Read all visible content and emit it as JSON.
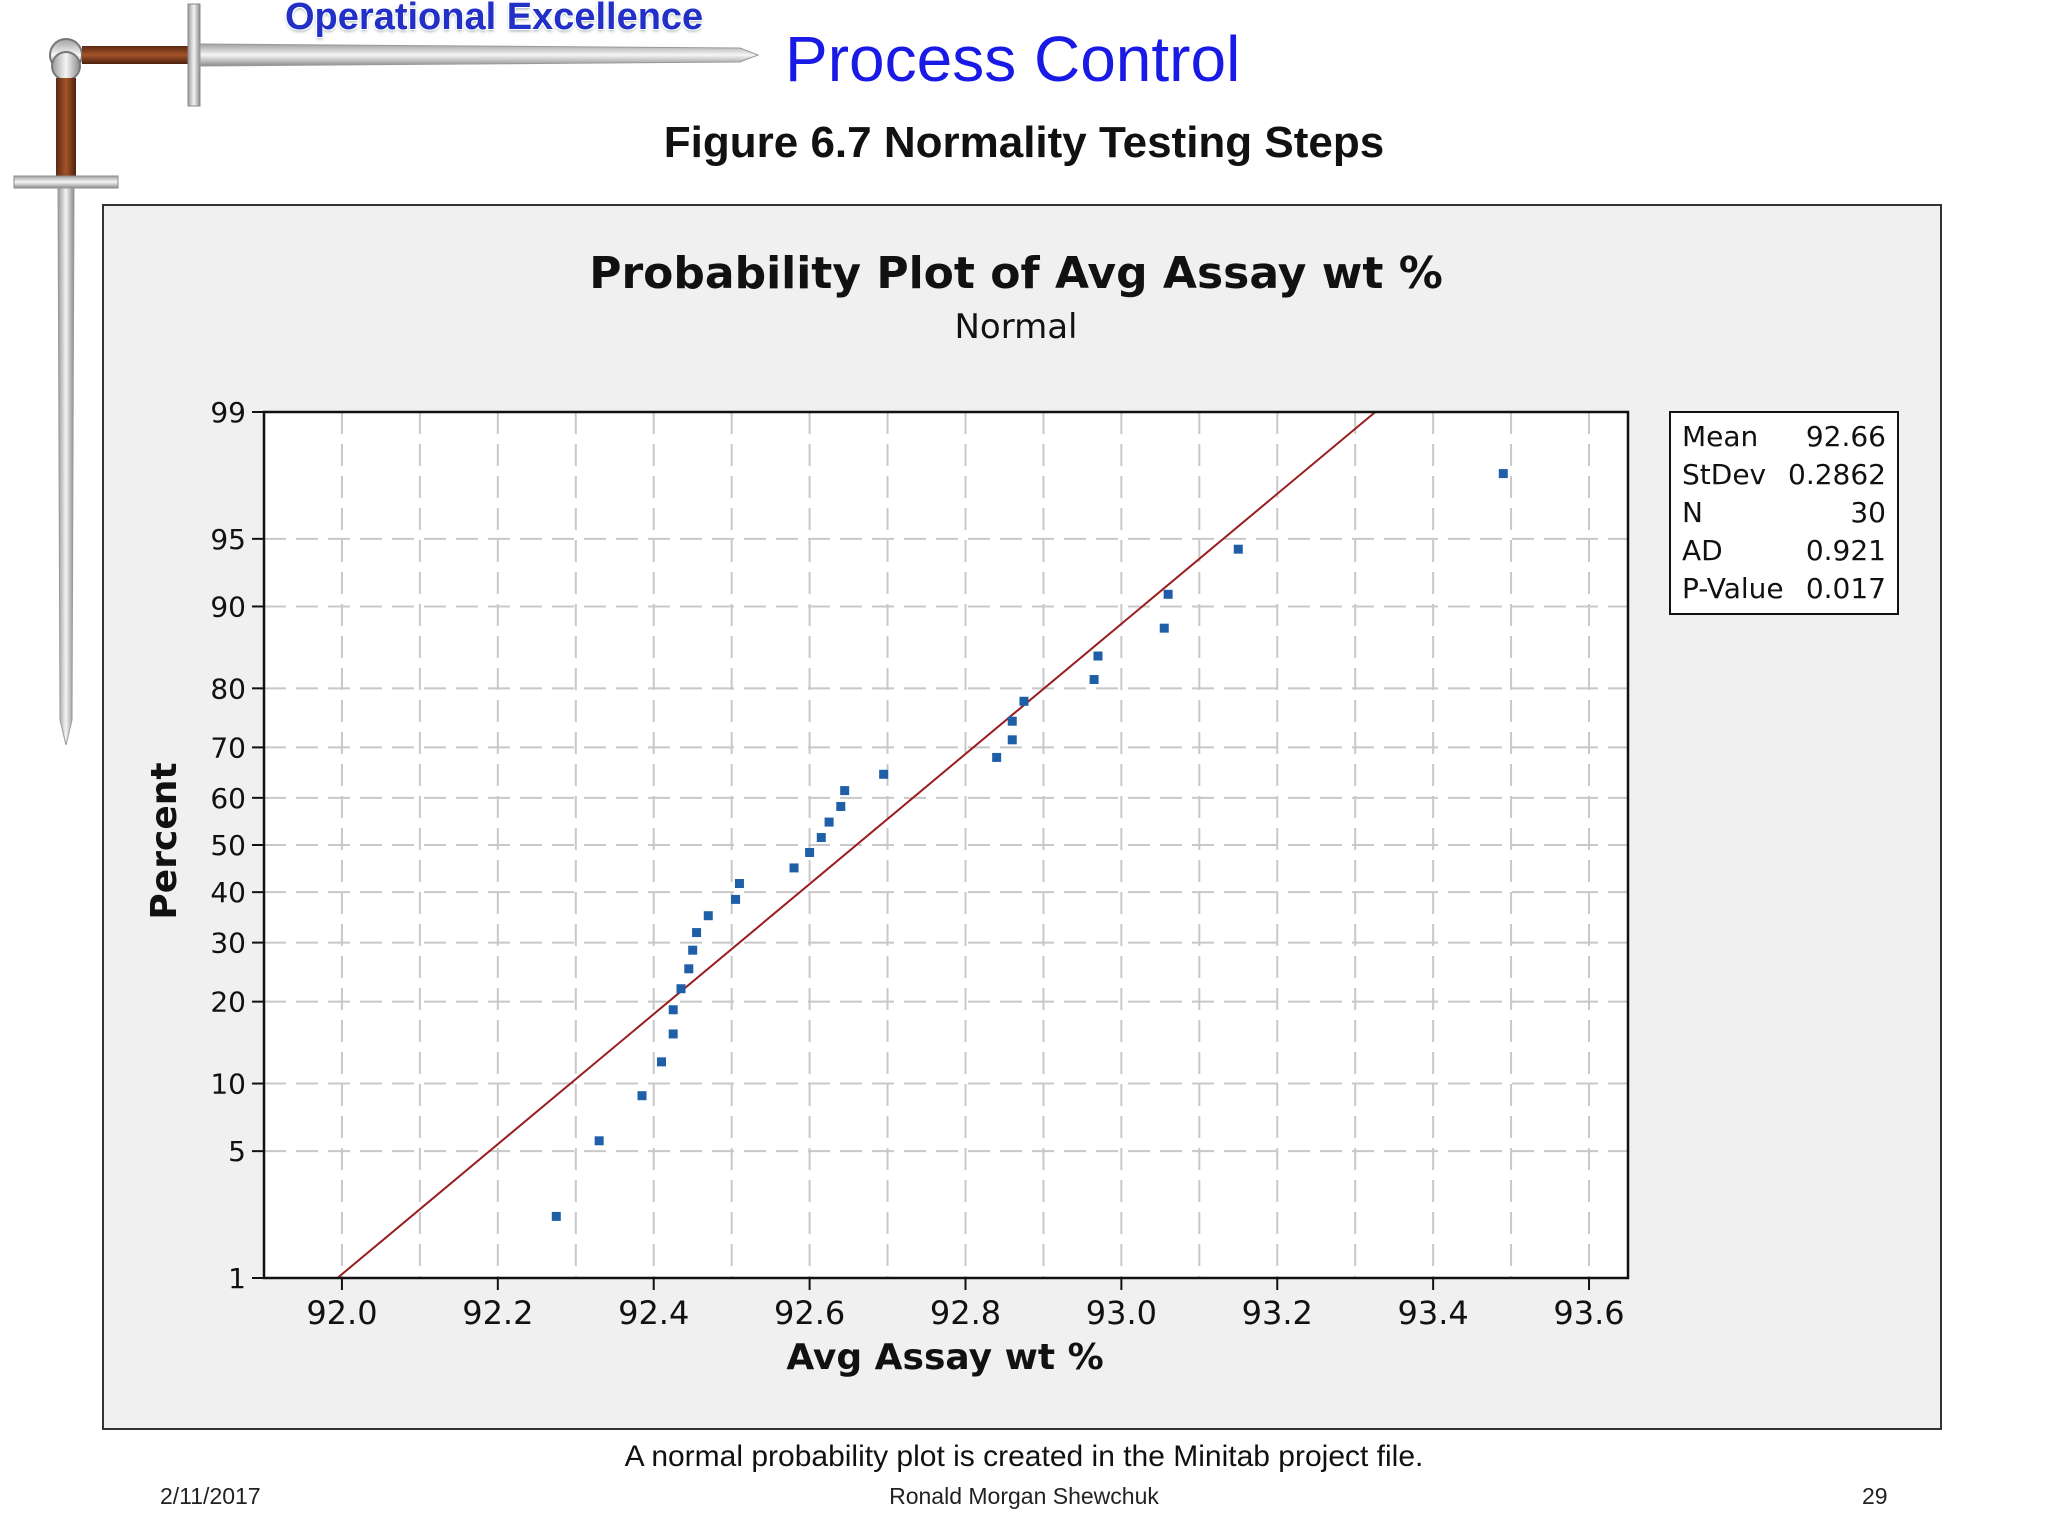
{
  "slide": {
    "banner": "Operational Excellence",
    "title": "Process Control",
    "figure_title": "Figure 6.7  Normality Testing Steps",
    "caption": "A normal probability plot is created in the Minitab project file.",
    "footer": {
      "date": "2/11/2017",
      "author": "Ronald Morgan Shewchuk",
      "page": "29"
    }
  },
  "colors": {
    "title": "#1a1ae6",
    "banner": "#2330c8",
    "points": "#1f5fa8",
    "fit_line": "#9b1c1c",
    "plot_background": "#f0f0f0"
  },
  "icons": [
    "sword-icon"
  ],
  "chart_data": {
    "type": "scatter",
    "scale": "normal-probability",
    "title": "Probability Plot of Avg Assay wt %",
    "subtitle": "Normal",
    "xlabel": "Avg Assay wt %",
    "ylabel": "Percent",
    "xlim": [
      91.9,
      93.65
    ],
    "xticks": [
      "92.0",
      "92.2",
      "92.4",
      "92.6",
      "92.8",
      "93.0",
      "93.2",
      "93.4",
      "93.6"
    ],
    "yticks": [
      "1",
      "5",
      "10",
      "20",
      "30",
      "40",
      "50",
      "60",
      "70",
      "80",
      "90",
      "95",
      "99"
    ],
    "ytick_values": [
      1,
      5,
      10,
      20,
      30,
      40,
      50,
      60,
      70,
      80,
      90,
      95,
      99
    ],
    "grid": true,
    "points": [
      {
        "x": 92.275,
        "y": 2.3
      },
      {
        "x": 92.33,
        "y": 5.6
      },
      {
        "x": 92.385,
        "y": 8.9
      },
      {
        "x": 92.41,
        "y": 12.2
      },
      {
        "x": 92.425,
        "y": 15.5
      },
      {
        "x": 92.425,
        "y": 18.8
      },
      {
        "x": 92.435,
        "y": 22.0
      },
      {
        "x": 92.445,
        "y": 25.3
      },
      {
        "x": 92.45,
        "y": 28.6
      },
      {
        "x": 92.455,
        "y": 31.9
      },
      {
        "x": 92.47,
        "y": 35.2
      },
      {
        "x": 92.505,
        "y": 38.5
      },
      {
        "x": 92.51,
        "y": 41.8
      },
      {
        "x": 92.58,
        "y": 45.1
      },
      {
        "x": 92.6,
        "y": 48.4
      },
      {
        "x": 92.615,
        "y": 51.6
      },
      {
        "x": 92.625,
        "y": 54.9
      },
      {
        "x": 92.64,
        "y": 58.2
      },
      {
        "x": 92.645,
        "y": 61.5
      },
      {
        "x": 92.695,
        "y": 64.8
      },
      {
        "x": 92.84,
        "y": 68.1
      },
      {
        "x": 92.86,
        "y": 71.4
      },
      {
        "x": 92.86,
        "y": 74.7
      },
      {
        "x": 92.875,
        "y": 78.0
      },
      {
        "x": 92.965,
        "y": 81.3
      },
      {
        "x": 92.97,
        "y": 84.5
      },
      {
        "x": 93.055,
        "y": 87.8
      },
      {
        "x": 93.06,
        "y": 91.1
      },
      {
        "x": 93.15,
        "y": 94.4
      },
      {
        "x": 93.49,
        "y": 97.7
      }
    ],
    "fit_line": {
      "mean": 92.66,
      "stdev": 0.2862
    },
    "legend_position": "top-right",
    "stats": [
      {
        "label": "Mean",
        "value": "92.66"
      },
      {
        "label": "StDev",
        "value": "0.2862"
      },
      {
        "label": "N",
        "value": "30"
      },
      {
        "label": "AD",
        "value": "0.921"
      },
      {
        "label": "P-Value",
        "value": "0.017"
      }
    ]
  }
}
